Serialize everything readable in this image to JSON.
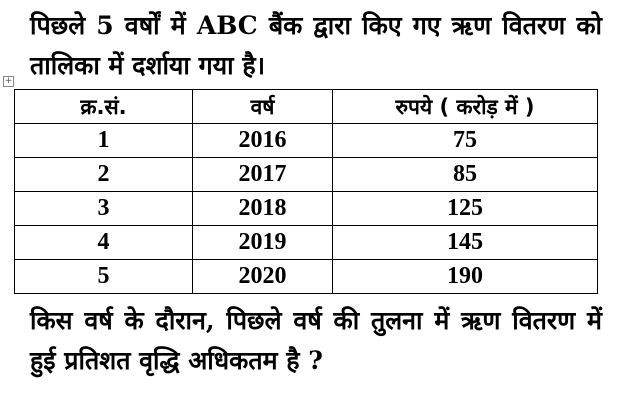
{
  "intro": "पिछले 5 वर्षों में ABC बैंक द्वारा किए गए ऋण वितरण को तालिका में दर्शाया गया है।",
  "table": {
    "headers": [
      "क्र.सं.",
      "वर्ष",
      "रुपये ( करोड़ में )"
    ],
    "rows": [
      [
        "1",
        "2016",
        "75"
      ],
      [
        "2",
        "2017",
        "85"
      ],
      [
        "3",
        "2018",
        "125"
      ],
      [
        "4",
        "2019",
        "145"
      ],
      [
        "5",
        "2020",
        "190"
      ]
    ]
  },
  "question": "किस वर्ष के दौरान, पिछले वर्ष की तुलना में ऋण वितरण में हुई प्रतिशत वृद्धि अधिकतम है ?",
  "table_handle_icon": "move-icon"
}
